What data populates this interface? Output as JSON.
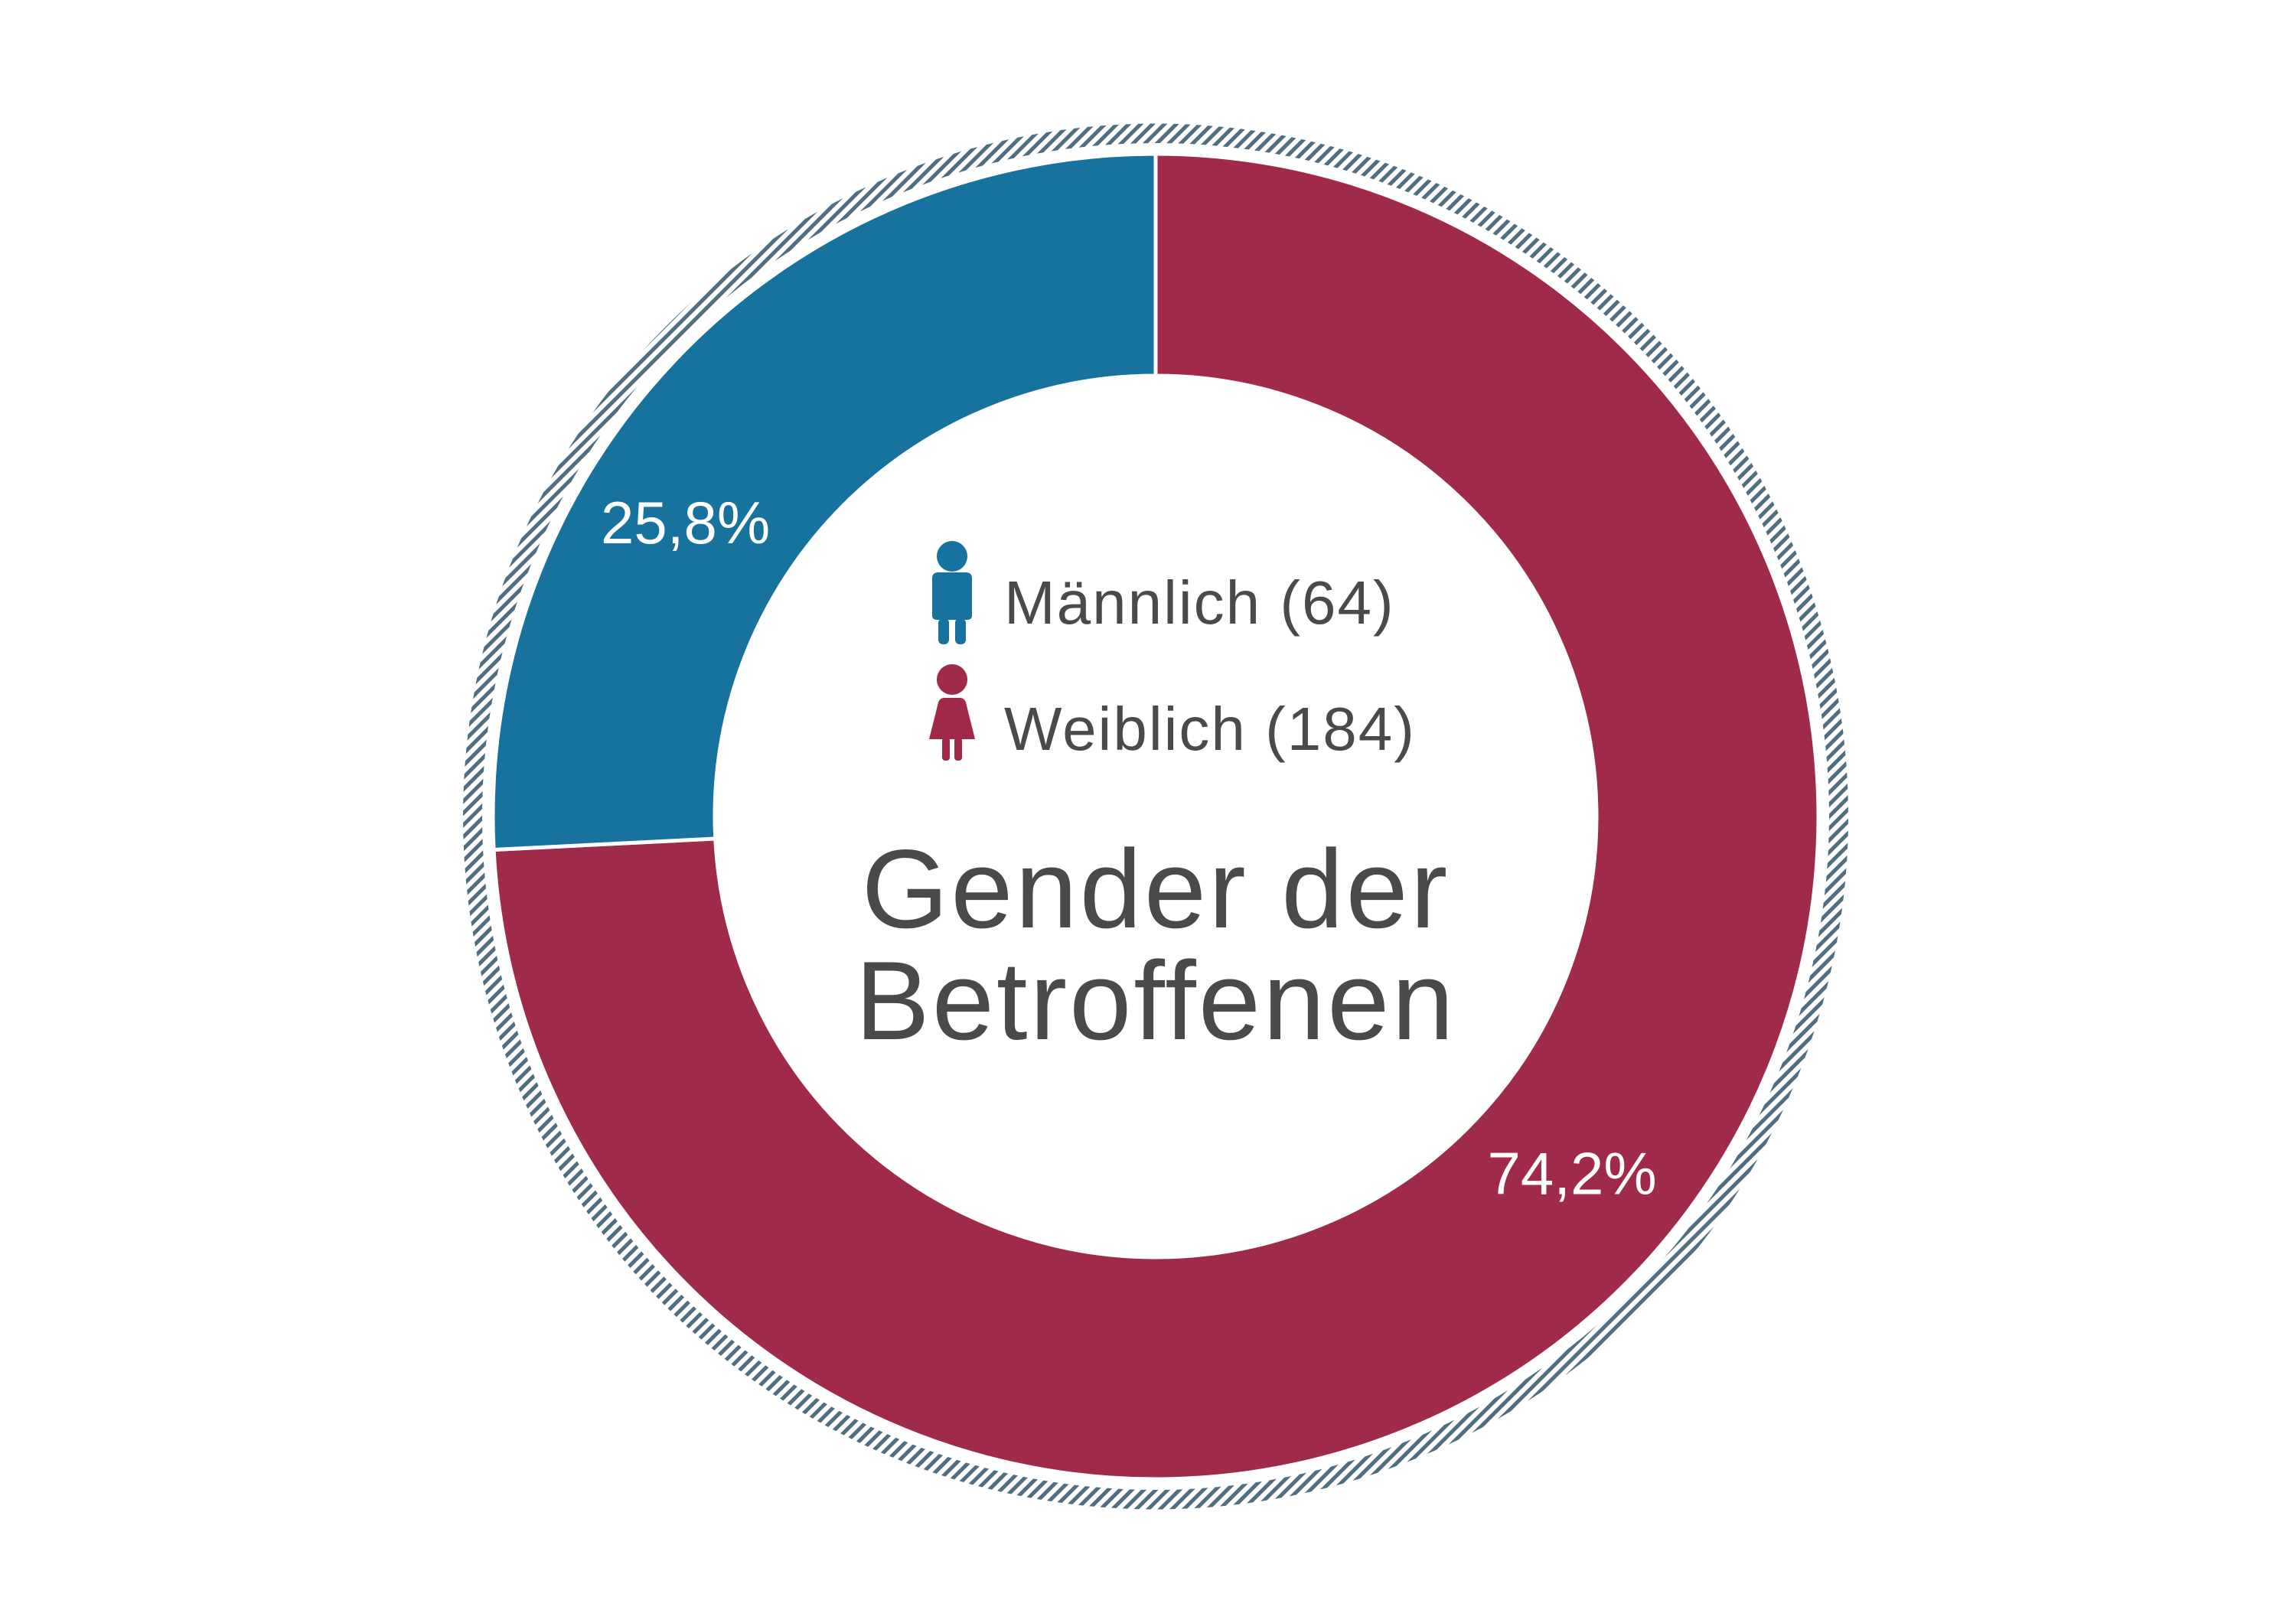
{
  "chart_data": {
    "type": "pie",
    "variant": "donut",
    "title_lines": [
      "Gender der",
      "Betroffenen"
    ],
    "series": [
      {
        "name": "Männlich (64)",
        "count": 64,
        "value": 25.8,
        "label": "25,8%",
        "color": "#17739d",
        "icon": "male-person-icon"
      },
      {
        "name": "Weiblich (184)",
        "count": 184,
        "value": 74.2,
        "label": "74,2%",
        "color": "#9f2a4a",
        "icon": "female-person-icon"
      }
    ],
    "start": "top",
    "direction": "clockwise",
    "outer_ring": "hatched",
    "outer_ring_color": "#4f6e80"
  }
}
